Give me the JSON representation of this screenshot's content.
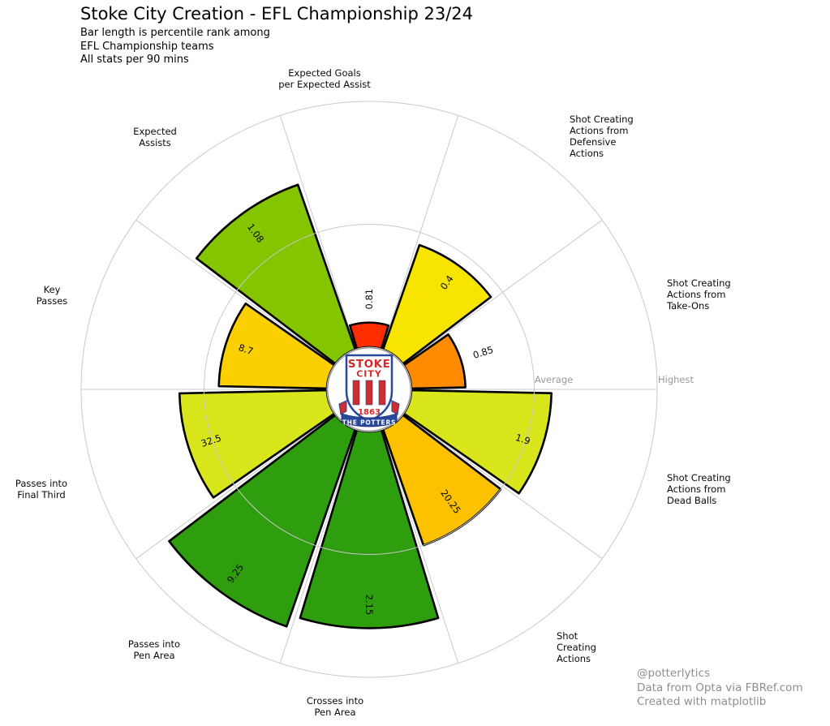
{
  "chart_data": {
    "type": "radial-bar-pizza",
    "title": "Stoke City Creation - EFL Championship 23/24",
    "subtitle_lines": [
      "Bar length is percentile rank among",
      "EFL Championship teams",
      "All stats per 90 mins"
    ],
    "reference_labels": {
      "average": "Average",
      "highest": "Highest"
    },
    "axis": {
      "percentile_min": 0,
      "percentile_max": 100,
      "grid": "rings at average and highest"
    },
    "params": [
      {
        "label": "Expected Goals\nper Expected Assist",
        "value": "0.81",
        "percentile": 10,
        "color": "#FF2D00"
      },
      {
        "label": "Shot Creating\nActions from\nDefensive\nActions",
        "value": "0.4",
        "percentile": 45,
        "color": "#F7E400"
      },
      {
        "label": "Shot Creating\nActions from\nTake-Ons",
        "value": "0.85",
        "percentile": 22,
        "color": "#FF8C00"
      },
      {
        "label": "Shot Creating\nActions from\nDead Balls",
        "value": "1.9",
        "percentile": 57,
        "color": "#D9E61C"
      },
      {
        "label": "Shot\nCreating\nActions",
        "value": "20.25",
        "percentile": 50,
        "color": "#FDC100"
      },
      {
        "label": "Crosses into\nPen Area",
        "value": "2.15",
        "percentile": 80,
        "color": "#2F9E0E"
      },
      {
        "label": "Passes into\nPen Area",
        "value": "9.25",
        "percentile": 85,
        "color": "#2F9E0E"
      },
      {
        "label": "Passes into\nFinal Third",
        "value": "32.5",
        "percentile": 60,
        "color": "#D9E61C"
      },
      {
        "label": "Key\nPasses",
        "value": "8.7",
        "percentile": 44,
        "color": "#FCD000"
      },
      {
        "label": "Expected\nAssists",
        "value": "1.08",
        "percentile": 71,
        "color": "#84C500"
      }
    ],
    "badge": {
      "club": "Stoke City",
      "line1": "STOKE",
      "line2": "CITY",
      "year": "1863",
      "motto": "THE POTTERS"
    },
    "credits": [
      "@potterlytics",
      "Data from Opta via FBRef.com",
      "Created with matplotlib"
    ],
    "colors": {
      "grid": "#c9c9c9",
      "slice_outline": "#000000",
      "reference_text": "#9a9a9a",
      "credit_text": "#8e8e8e",
      "badge_red": "#D22B2B",
      "badge_blue": "#27489C"
    }
  }
}
